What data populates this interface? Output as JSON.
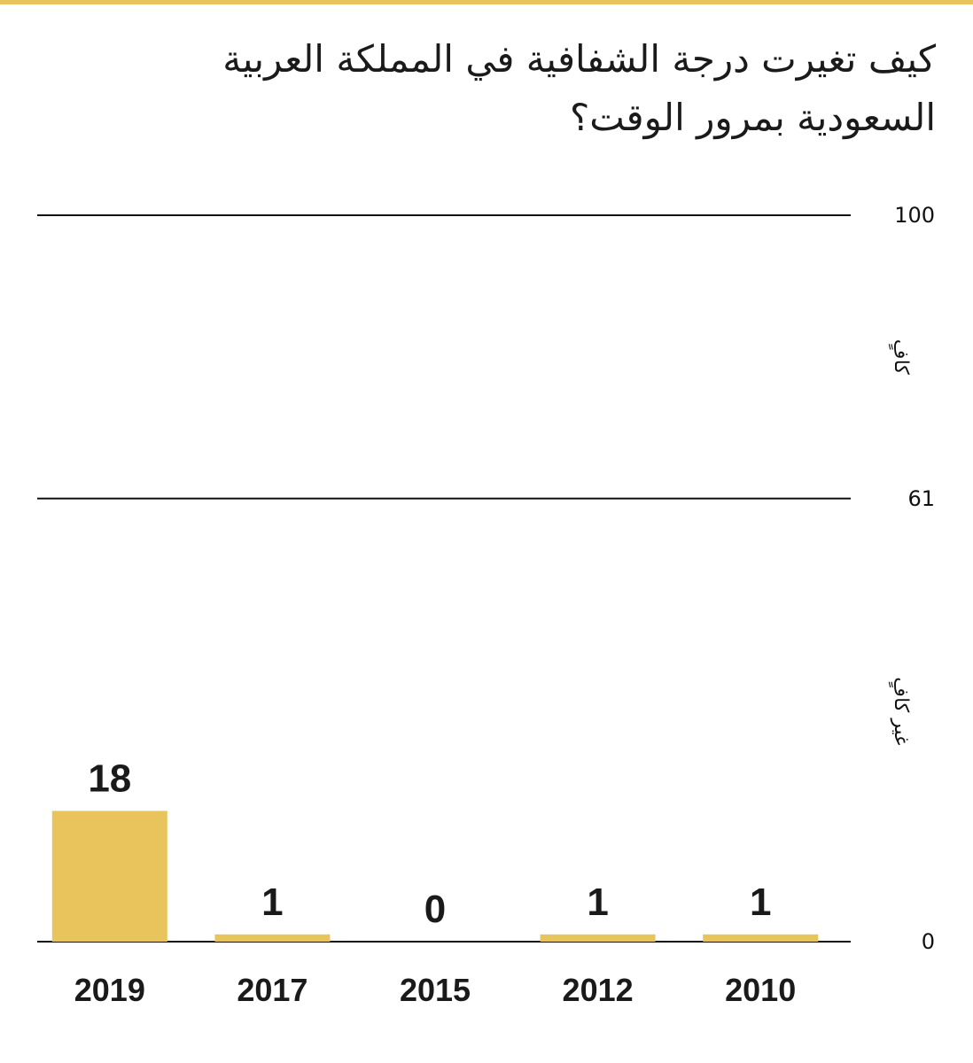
{
  "chart_data": {
    "type": "bar",
    "title": "كيف تغيرت درجة الشفافية في المملكة العربية السعودية بمرور الوقت؟",
    "categories": [
      "2019",
      "2017",
      "2015",
      "2012",
      "2010"
    ],
    "values": [
      18,
      1,
      0,
      1,
      1
    ],
    "ylim": [
      0,
      100
    ],
    "yticks": [
      0,
      61,
      100
    ],
    "bands": [
      "كافٍ",
      "غير كافٍ"
    ],
    "grid": true,
    "colors": {
      "bar": "#e9c45d",
      "accent": "#e9c45d",
      "text": "#1a1a1a"
    }
  }
}
